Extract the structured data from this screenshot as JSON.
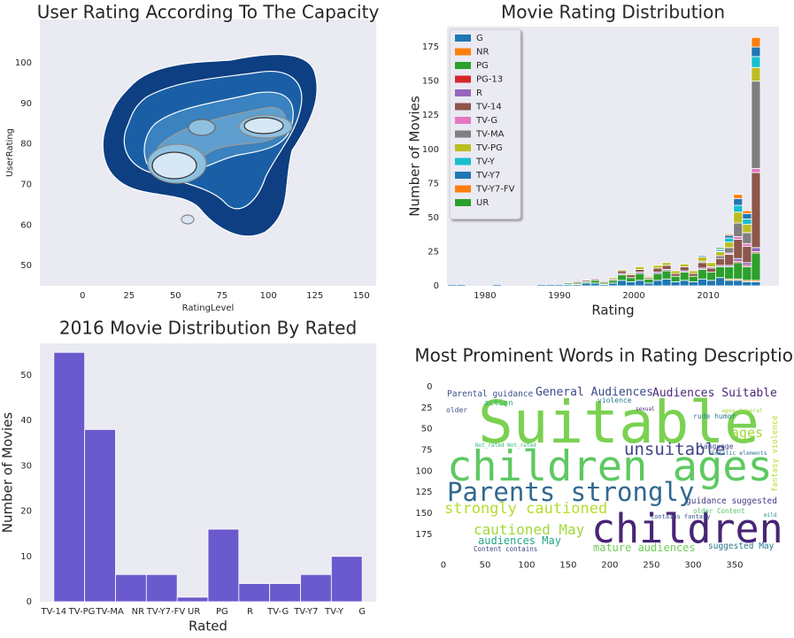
{
  "chart_data": [
    {
      "type": "kde",
      "title": "User Rating According To The Capacity",
      "xlabel": "RatingLevel",
      "ylabel": "UserRating",
      "xlim": [
        -23,
        158
      ],
      "xticks": [
        0,
        25,
        50,
        75,
        100,
        125,
        150
      ],
      "ylim": [
        45,
        110.7
      ],
      "yticks": [
        50,
        60,
        70,
        80,
        90,
        100
      ],
      "grid": false
    },
    {
      "type": "stacked_histogram",
      "title": "Movie Rating Distribution",
      "xlabel": "Rating",
      "ylabel": "Number of Movies",
      "xlim": [
        1974.9,
        2019.5
      ],
      "xticks": [
        1980,
        1990,
        2000,
        2010
      ],
      "ylim": [
        0,
        190
      ],
      "yticks": [
        0,
        25,
        50,
        75,
        100,
        125,
        150,
        175
      ],
      "grid": false,
      "legend": "upper left",
      "bins": [
        1975,
        1976.2,
        1977.4,
        1978.6,
        1979.8,
        1981,
        1982.2,
        1983.4,
        1984.6,
        1985.8,
        1987,
        1988.2,
        1989.4,
        1990.6,
        1991.8,
        1993,
        1994.2,
        1995.4,
        1996.6,
        1997.8,
        1999,
        2000.2,
        2001.4,
        2002.6,
        2003.8,
        2005,
        2006.2,
        2007.4,
        2008.6,
        2009.8,
        2011,
        2012.2,
        2013.4,
        2014.6,
        2015.8,
        2017
      ],
      "series": [
        {
          "name": "G",
          "color": "#1f77b4",
          "values": [
            1,
            1,
            0,
            0,
            0,
            1,
            0,
            0,
            0,
            0,
            1,
            1,
            1,
            1,
            1,
            2,
            2,
            1,
            2,
            4,
            3,
            4,
            2,
            4,
            5,
            3,
            4,
            3,
            5,
            4,
            6,
            4,
            4,
            3,
            3
          ]
        },
        {
          "name": "NR",
          "color": "#ff7f0e",
          "values": [
            0,
            0,
            0,
            0,
            0,
            0,
            0,
            0,
            0,
            0,
            0,
            0,
            0,
            0,
            0,
            0,
            0,
            0,
            0,
            0,
            0,
            0,
            0,
            0,
            0,
            0,
            0,
            0,
            0,
            0,
            0,
            1,
            1,
            1,
            1
          ]
        },
        {
          "name": "PG",
          "color": "#2ca02c",
          "values": [
            0,
            0,
            0,
            0,
            0,
            0,
            0,
            0,
            0,
            0,
            0,
            0,
            0,
            1,
            1,
            1,
            2,
            1,
            2,
            4,
            3,
            5,
            3,
            5,
            6,
            4,
            6,
            4,
            7,
            6,
            8,
            9,
            12,
            10,
            20
          ]
        },
        {
          "name": "PG-13",
          "color": "#d62728",
          "values": [
            0,
            0,
            0,
            0,
            0,
            0,
            0,
            0,
            0,
            0,
            0,
            0,
            0,
            0,
            0,
            0,
            0,
            0,
            0,
            0,
            0,
            0,
            0,
            0,
            0,
            0,
            0,
            0,
            0,
            0,
            0,
            0,
            1,
            1,
            1
          ]
        },
        {
          "name": "R",
          "color": "#9467bd",
          "values": [
            0,
            0,
            0,
            0,
            0,
            0,
            0,
            0,
            0,
            0,
            0,
            0,
            0,
            0,
            0,
            0,
            0,
            0,
            0,
            1,
            0,
            1,
            0,
            1,
            1,
            0,
            1,
            0,
            1,
            0,
            1,
            1,
            2,
            2,
            3
          ]
        },
        {
          "name": "TV-14",
          "color": "#8c564b",
          "values": [
            0,
            0,
            0,
            0,
            0,
            0,
            0,
            0,
            0,
            0,
            0,
            0,
            0,
            0,
            1,
            1,
            1,
            1,
            1,
            2,
            2,
            2,
            1,
            3,
            3,
            2,
            3,
            2,
            4,
            3,
            5,
            8,
            14,
            12,
            55
          ]
        },
        {
          "name": "TV-G",
          "color": "#e377c2",
          "values": [
            0,
            0,
            0,
            0,
            0,
            0,
            0,
            0,
            0,
            0,
            0,
            0,
            0,
            0,
            0,
            0,
            0,
            0,
            0,
            0,
            0,
            0,
            0,
            0,
            0,
            0,
            0,
            0,
            0,
            0,
            0,
            1,
            2,
            2,
            3
          ]
        },
        {
          "name": "TV-MA",
          "color": "#7f7f7f",
          "values": [
            0,
            0,
            0,
            0,
            0,
            0,
            0,
            0,
            0,
            0,
            0,
            0,
            0,
            0,
            0,
            0,
            0,
            0,
            0,
            0,
            0,
            0,
            0,
            0,
            0,
            0,
            0,
            0,
            1,
            1,
            2,
            4,
            10,
            8,
            64
          ]
        },
        {
          "name": "TV-PG",
          "color": "#bcbd22",
          "values": [
            0,
            0,
            0,
            0,
            0,
            0,
            0,
            0,
            0,
            0,
            0,
            0,
            0,
            0,
            0,
            0,
            0,
            0,
            1,
            1,
            1,
            2,
            1,
            2,
            2,
            2,
            2,
            2,
            3,
            3,
            3,
            4,
            8,
            6,
            10
          ]
        },
        {
          "name": "TV-Y",
          "color": "#17becf",
          "values": [
            0,
            0,
            0,
            0,
            0,
            0,
            0,
            0,
            0,
            0,
            0,
            0,
            0,
            0,
            0,
            0,
            0,
            0,
            0,
            0,
            0,
            0,
            0,
            0,
            0,
            0,
            0,
            0,
            0,
            0,
            1,
            3,
            5,
            4,
            8
          ]
        },
        {
          "name": "TV-Y7",
          "color": "#1f77b4",
          "values": [
            0,
            0,
            0,
            0,
            0,
            0,
            0,
            0,
            0,
            0,
            0,
            0,
            0,
            0,
            0,
            0,
            0,
            0,
            0,
            0,
            0,
            0,
            0,
            0,
            0,
            0,
            0,
            0,
            1,
            0,
            1,
            2,
            5,
            4,
            7
          ]
        },
        {
          "name": "TV-Y7-FV",
          "color": "#ff7f0e",
          "values": [
            0,
            0,
            0,
            0,
            0,
            0,
            0,
            0,
            0,
            0,
            0,
            0,
            0,
            0,
            0,
            0,
            0,
            0,
            0,
            0,
            0,
            0,
            0,
            0,
            0,
            0,
            0,
            0,
            0,
            0,
            0,
            1,
            3,
            2,
            7
          ]
        },
        {
          "name": "UR",
          "color": "#2ca02c",
          "values": [
            0,
            0,
            0,
            0,
            0,
            0,
            0,
            0,
            0,
            0,
            0,
            0,
            0,
            0,
            0,
            0,
            0,
            0,
            0,
            0,
            0,
            0,
            0,
            0,
            0,
            0,
            0,
            0,
            0,
            0,
            1,
            0,
            0,
            0,
            0
          ]
        }
      ]
    },
    {
      "type": "histogram",
      "title": "2016 Movie Distribution By Rated",
      "xlabel": "Rated",
      "ylabel": "Number of Movies",
      "color": "#6a5acd",
      "xlim": [
        -0.5,
        11.5
      ],
      "ylim": [
        0,
        57
      ],
      "yticks": [
        0,
        10,
        20,
        30,
        40,
        50
      ],
      "grid": false,
      "xticks": [
        {
          "value": 0,
          "label": "TV-14"
        },
        {
          "value": 1,
          "label": "TV-PG"
        },
        {
          "value": 2,
          "label": "TV-MA"
        },
        {
          "value": 3,
          "label": "NR"
        },
        {
          "value": 4,
          "label": "TV-Y7-FV"
        },
        {
          "value": 5,
          "label": "UR"
        },
        {
          "value": 6,
          "label": "PG"
        },
        {
          "value": 7,
          "label": "R"
        },
        {
          "value": 8,
          "label": "TV-G"
        },
        {
          "value": 9,
          "label": "TV-Y7"
        },
        {
          "value": 10,
          "label": "TV-Y"
        },
        {
          "value": 11,
          "label": "G"
        }
      ],
      "bins": [
        0,
        1.1,
        2.2,
        3.3,
        4.4,
        5.5,
        6.6,
        7.7,
        8.8,
        9.9,
        11
      ],
      "values": [
        55,
        38,
        6,
        6,
        1,
        16,
        4,
        4,
        6,
        10
      ]
    },
    {
      "type": "wordcloud",
      "title": "Most Prominent Words in Rating Description",
      "xlim": [
        -0.5,
        399.5
      ],
      "xticks": [
        0,
        50,
        100,
        150,
        200,
        250,
        300,
        350
      ],
      "ylim": [
        199.5,
        -0.5
      ],
      "yticks": [
        0,
        25,
        50,
        75,
        100,
        125,
        150,
        175
      ],
      "words": [
        "Suitable",
        "children ages",
        "Parents strongly",
        "children",
        "strongly cautioned",
        "cautioned May",
        "unsuitable",
        "ages",
        "General Audiences",
        "Audiences Suitable",
        "Parental guidance",
        "audiences May",
        "mature audiences",
        "suggested May",
        "guidance suggested",
        "language",
        "older Content",
        "Content contains",
        "contains fantasy",
        "action",
        "violence",
        "rude humor",
        "older",
        "fantasy violence",
        "thematic elements",
        "ages General",
        "sexual",
        "mild",
        "Not_rated Not_rated"
      ]
    }
  ]
}
